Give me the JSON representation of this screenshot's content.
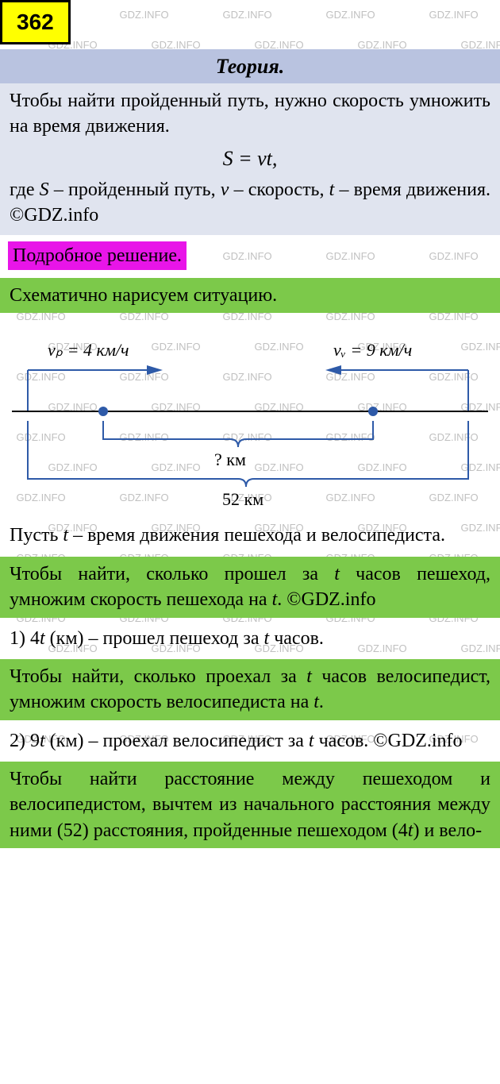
{
  "badge": "362",
  "theory": {
    "title": "Теория.",
    "p1": "Чтобы найти пройденный путь, нужно скорость умножить на время движения.",
    "formula": "S = vt,",
    "p2_prefix": "где ",
    "p2_s": "S",
    "p2_mid1": " – пройденный путь,  ",
    "p2_v": "v",
    "p2_mid2": " – скорость, ",
    "p2_t": "t",
    "p2_suffix": " – время движения. ©GDZ.info"
  },
  "solution_label": "Подробное решение.",
  "step_schema": "Схематично нарисуем ситуацию.",
  "diagram": {
    "vp_label": "vₚ = 4 км/ч",
    "vv_label": "vᵥ = 9 км/ч",
    "unknown": "? км",
    "total": "52 км",
    "colors": {
      "line": "#2e5aa8",
      "dot": "#2e5aa8",
      "axis": "#000"
    }
  },
  "let_prefix": "Пусть ",
  "let_t": "t",
  "let_suffix": " – время движения пешехода и велосипедиста.",
  "green1_prefix": "Чтобы найти, сколько прошел за ",
  "green1_t": "t",
  "green1_mid": " часов пешеход, умножим скорость пешехода на ",
  "green1_t2": "t",
  "green1_suffix": ". ©GDZ.info",
  "ans1_prefix": "1) 4",
  "ans1_t": "t",
  "ans1_mid": " (км) – прошел пешеход за ",
  "ans1_t2": "t",
  "ans1_suffix": " часов.",
  "green2_prefix": "Чтобы найти, сколько проехал за ",
  "green2_t": "t",
  "green2_mid": " часов велосипедист, умножим скорость велосипедиста на ",
  "green2_t2": "t",
  "green2_suffix": ".",
  "ans2_prefix": "2) 9",
  "ans2_t": "t",
  "ans2_mid": " (км) – проехал велосипедист за ",
  "ans2_t2": "t",
  "ans2_suffix": " часов. ©GDZ.info",
  "green3_prefix": "Чтобы найти расстояние между пешеходом и велосипедистом, вычтем из начального расстояния между ними (52) расстояния, пройденные пешеходом (4",
  "green3_t": "t",
  "green3_suffix": ") и вело-",
  "watermark_text": "GDZ.INFO"
}
